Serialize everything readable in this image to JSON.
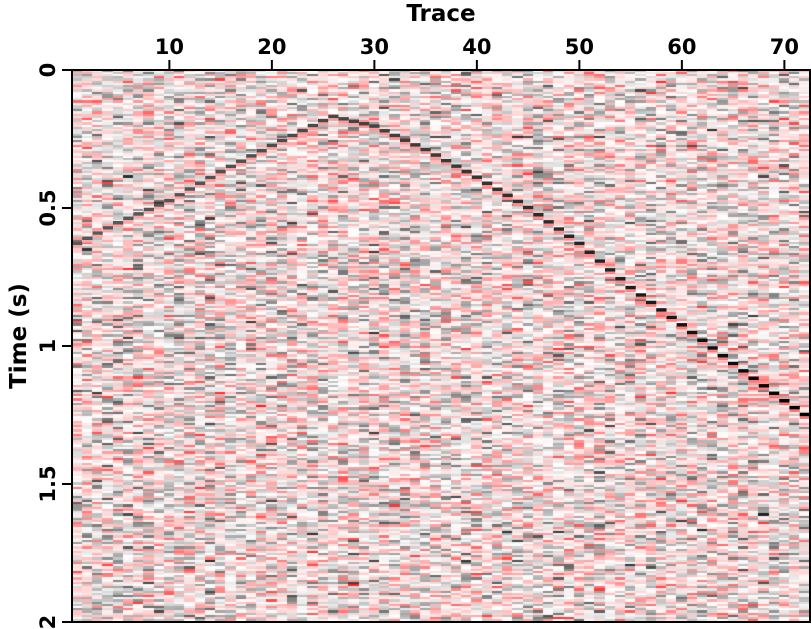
{
  "chart_data": {
    "type": "heatmap",
    "title": "",
    "xlabel": "Trace",
    "ylabel": "Time (s)",
    "x_axis_position": "top",
    "xlim": [
      1,
      72
    ],
    "ylim": [
      2,
      0
    ],
    "x_ticks": [
      {
        "value": 10,
        "label": "10"
      },
      {
        "value": 20,
        "label": "20"
      },
      {
        "value": 30,
        "label": "30"
      },
      {
        "value": 40,
        "label": "40"
      },
      {
        "value": 50,
        "label": "50"
      },
      {
        "value": 60,
        "label": "60"
      },
      {
        "value": 70,
        "label": "70"
      }
    ],
    "y_ticks": [
      {
        "value": 0,
        "label": "0"
      },
      {
        "value": 0.5,
        "label": "0.5"
      },
      {
        "value": 1,
        "label": "1"
      },
      {
        "value": 1.5,
        "label": "1.5"
      },
      {
        "value": 2,
        "label": "2"
      }
    ],
    "grid": false,
    "legend": "none",
    "colormap": {
      "negative": "#ff0000",
      "zero": "#ffffff",
      "positive": "#000000"
    },
    "noise": {
      "time_sample_interval_s": 0.008,
      "amplitude": 0.55,
      "seed": 7
    },
    "event": {
      "description_type": "diffraction",
      "apex_trace": 26,
      "apex_time_s": 0.17,
      "amplitude_min": 0.65,
      "amplitude_max": 1.0,
      "picks": [
        {
          "trace": 1,
          "time": 0.63
        },
        {
          "trace": 5,
          "time": 0.555
        },
        {
          "trace": 10,
          "time": 0.475
        },
        {
          "trace": 15,
          "time": 0.37
        },
        {
          "trace": 20,
          "time": 0.275
        },
        {
          "trace": 25,
          "time": 0.185
        },
        {
          "trace": 26,
          "time": 0.17
        },
        {
          "trace": 30,
          "time": 0.205
        },
        {
          "trace": 35,
          "time": 0.29
        },
        {
          "trace": 40,
          "time": 0.39
        },
        {
          "trace": 45,
          "time": 0.5
        },
        {
          "trace": 50,
          "time": 0.63
        },
        {
          "trace": 55,
          "time": 0.79
        },
        {
          "trace": 60,
          "time": 0.925
        },
        {
          "trace": 65,
          "time": 1.065
        },
        {
          "trace": 70,
          "time": 1.2
        },
        {
          "trace": 72,
          "time": 1.25
        }
      ]
    }
  }
}
